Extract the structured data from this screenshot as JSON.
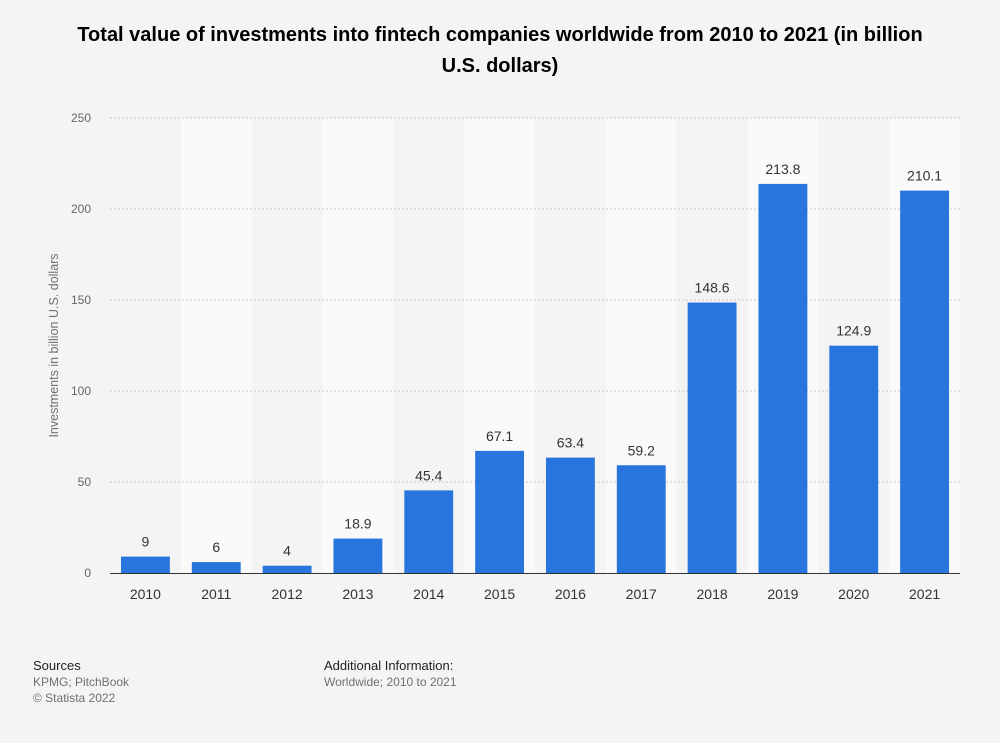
{
  "title": "Total value of investments into fintech companies worldwide from 2010 to 2021 (in billion U.S. dollars)",
  "chart_data": {
    "type": "bar",
    "title": "Total value of investments into fintech companies worldwide from 2010 to 2021 (in billion U.S. dollars)",
    "xlabel": "",
    "ylabel": "Investments in billion U.S. dollars",
    "categories": [
      "2010",
      "2011",
      "2012",
      "2013",
      "2014",
      "2015",
      "2016",
      "2017",
      "2018",
      "2019",
      "2020",
      "2021"
    ],
    "values": [
      9,
      6,
      4,
      18.9,
      45.4,
      67.1,
      63.4,
      59.2,
      148.6,
      213.8,
      124.9,
      210.1
    ],
    "data_labels": [
      "9",
      "6",
      "4",
      "18.9",
      "45.4",
      "67.1",
      "63.4",
      "59.2",
      "148.6",
      "213.8",
      "124.9",
      "210.1"
    ],
    "ylim": [
      0,
      250
    ],
    "yticks": [
      0,
      50,
      100,
      150,
      200,
      250
    ],
    "grid": true,
    "bar_color": "#2876dd",
    "legend": "none"
  },
  "footer": {
    "sources_heading": "Sources",
    "sources": "KPMG; PitchBook",
    "copyright": "© Statista 2022",
    "additional_heading": "Additional Information:",
    "additional": "Worldwide; 2010 to 2021"
  }
}
